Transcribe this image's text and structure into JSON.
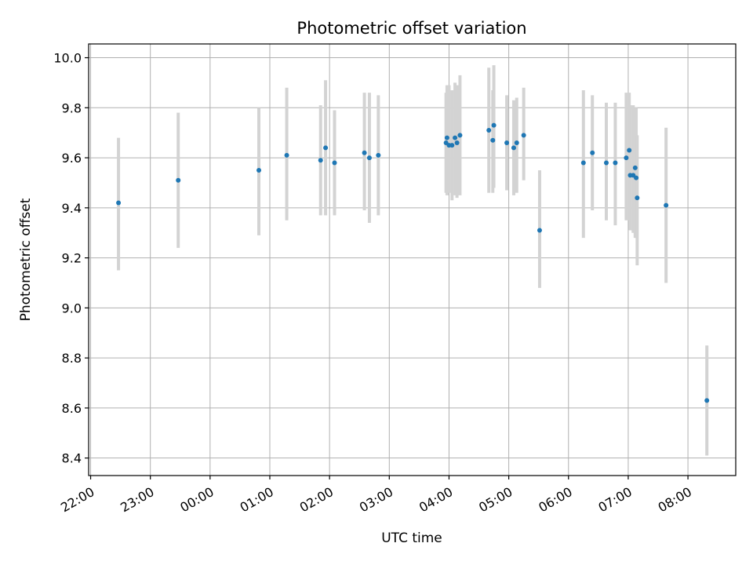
{
  "chart_data": {
    "type": "scatter",
    "title": "Photometric offset variation",
    "xlabel": "UTC time",
    "ylabel": "Photometric offset",
    "grid": true,
    "x_axis": {
      "unit": "UTC time (HH:MM)",
      "range": [
        "21:58",
        "08:48"
      ],
      "tick_labels": [
        "22:00",
        "23:00",
        "00:00",
        "01:00",
        "02:00",
        "03:00",
        "04:00",
        "05:00",
        "06:00",
        "07:00",
        "08:00"
      ]
    },
    "y_axis": {
      "range": [
        8.33,
        10.055
      ],
      "ticks": [
        8.4,
        8.6,
        8.8,
        9.0,
        9.2,
        9.4,
        9.6,
        9.8,
        10.0
      ],
      "tick_labels": [
        "8.4",
        "8.6",
        "8.8",
        "9.0",
        "9.2",
        "9.4",
        "9.6",
        "9.8",
        "10.0"
      ]
    },
    "colors": {
      "points": "#1f77b4",
      "errorbars": "#d3d3d3",
      "grid": "#b0b0b0"
    },
    "series": [
      {
        "points": [
          {
            "x": "22:28",
            "y": 9.42,
            "ylo": 9.15,
            "yhi": 9.68
          },
          {
            "x": "23:28",
            "y": 9.51,
            "ylo": 9.24,
            "yhi": 9.78
          },
          {
            "x": "00:49",
            "y": 9.55,
            "ylo": 9.29,
            "yhi": 9.8
          },
          {
            "x": "01:17",
            "y": 9.61,
            "ylo": 9.35,
            "yhi": 9.88
          },
          {
            "x": "01:51",
            "y": 9.59,
            "ylo": 9.37,
            "yhi": 9.81
          },
          {
            "x": "01:56",
            "y": 9.64,
            "ylo": 9.37,
            "yhi": 9.91
          },
          {
            "x": "02:05",
            "y": 9.58,
            "ylo": 9.37,
            "yhi": 9.79
          },
          {
            "x": "02:35",
            "y": 9.62,
            "ylo": 9.39,
            "yhi": 9.86
          },
          {
            "x": "02:40",
            "y": 9.6,
            "ylo": 9.34,
            "yhi": 9.86
          },
          {
            "x": "02:49",
            "y": 9.61,
            "ylo": 9.37,
            "yhi": 9.85
          },
          {
            "x": "03:57",
            "y": 9.66,
            "ylo": 9.46,
            "yhi": 9.86
          },
          {
            "x": "03:58",
            "y": 9.68,
            "ylo": 9.45,
            "yhi": 9.89
          },
          {
            "x": "04:00",
            "y": 9.65,
            "ylo": 9.46,
            "yhi": 9.89
          },
          {
            "x": "04:03",
            "y": 9.65,
            "ylo": 9.43,
            "yhi": 9.87
          },
          {
            "x": "04:06",
            "y": 9.68,
            "ylo": 9.45,
            "yhi": 9.9
          },
          {
            "x": "04:08",
            "y": 9.66,
            "ylo": 9.44,
            "yhi": 9.89
          },
          {
            "x": "04:11",
            "y": 9.69,
            "ylo": 9.45,
            "yhi": 9.93
          },
          {
            "x": "04:40",
            "y": 9.71,
            "ylo": 9.46,
            "yhi": 9.96
          },
          {
            "x": "04:44",
            "y": 9.67,
            "ylo": 9.46,
            "yhi": 9.87
          },
          {
            "x": "04:45",
            "y": 9.73,
            "ylo": 9.48,
            "yhi": 9.97
          },
          {
            "x": "04:58",
            "y": 9.66,
            "ylo": 9.47,
            "yhi": 9.85
          },
          {
            "x": "05:05",
            "y": 9.64,
            "ylo": 9.45,
            "yhi": 9.83
          },
          {
            "x": "05:08",
            "y": 9.66,
            "ylo": 9.46,
            "yhi": 9.84
          },
          {
            "x": "05:15",
            "y": 9.69,
            "ylo": 9.51,
            "yhi": 9.88
          },
          {
            "x": "05:31",
            "y": 9.31,
            "ylo": 9.08,
            "yhi": 9.55
          },
          {
            "x": "06:15",
            "y": 9.58,
            "ylo": 9.28,
            "yhi": 9.87
          },
          {
            "x": "06:24",
            "y": 9.62,
            "ylo": 9.39,
            "yhi": 9.85
          },
          {
            "x": "06:38",
            "y": 9.58,
            "ylo": 9.35,
            "yhi": 9.82
          },
          {
            "x": "06:47",
            "y": 9.58,
            "ylo": 9.33,
            "yhi": 9.82
          },
          {
            "x": "06:58",
            "y": 9.6,
            "ylo": 9.35,
            "yhi": 9.86
          },
          {
            "x": "07:01",
            "y": 9.63,
            "ylo": 9.35,
            "yhi": 9.86
          },
          {
            "x": "07:02",
            "y": 9.53,
            "ylo": 9.31,
            "yhi": 9.81
          },
          {
            "x": "07:05",
            "y": 9.53,
            "ylo": 9.3,
            "yhi": 9.81
          },
          {
            "x": "07:07",
            "y": 9.56,
            "ylo": 9.28,
            "yhi": 9.8
          },
          {
            "x": "07:08",
            "y": 9.52,
            "ylo": 9.28,
            "yhi": 9.8
          },
          {
            "x": "07:09",
            "y": 9.44,
            "ylo": 9.17,
            "yhi": 9.69
          },
          {
            "x": "07:38",
            "y": 9.41,
            "ylo": 9.1,
            "yhi": 9.72
          },
          {
            "x": "08:19",
            "y": 8.63,
            "ylo": 8.41,
            "yhi": 8.85
          }
        ]
      }
    ]
  }
}
